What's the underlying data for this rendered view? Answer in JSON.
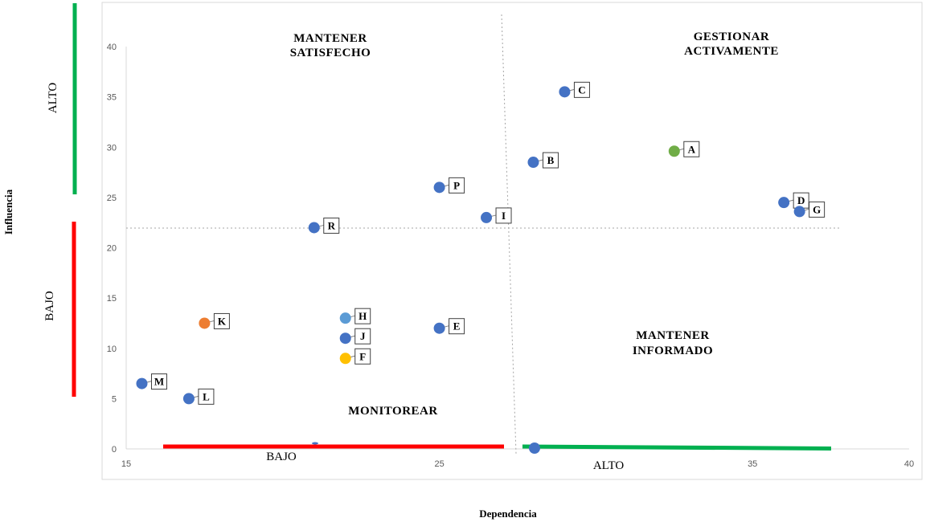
{
  "chart_data": {
    "type": "scatter",
    "xlabel": "Dependencia",
    "ylabel": "Influencia",
    "xlim": [
      15,
      40
    ],
    "ylim": [
      0,
      40
    ],
    "x_ticks": [
      15,
      25,
      35,
      40
    ],
    "y_ticks": [
      0,
      5,
      10,
      15,
      20,
      25,
      30,
      35,
      40
    ],
    "thresholds": {
      "x": 27,
      "y": 22
    },
    "quadrant_labels": {
      "top_left": [
        "MANTENER",
        "SATISFECHO"
      ],
      "top_right": [
        "GESTIONAR",
        "ACTIVAMENTE"
      ],
      "bottom_right": [
        "MANTENER",
        "INFORMADO"
      ],
      "bottom_left": [
        "MONITOREAR"
      ]
    },
    "side_labels": {
      "y_high": "ALTO",
      "y_low": "BAJO",
      "x_low": "BAJO",
      "x_high": "ALTO"
    },
    "points": [
      {
        "label": "A",
        "x": 32.5,
        "y": 29.6,
        "color": "#70ad47"
      },
      {
        "label": "B",
        "x": 28.0,
        "y": 28.5,
        "color": "#4472c4"
      },
      {
        "label": "C",
        "x": 29.0,
        "y": 35.5,
        "color": "#4472c4"
      },
      {
        "label": "D",
        "x": 36.0,
        "y": 24.5,
        "color": "#4472c4"
      },
      {
        "label": "E",
        "x": 25.0,
        "y": 12.0,
        "color": "#4472c4"
      },
      {
        "label": "F",
        "x": 22.0,
        "y": 9.0,
        "color": "#ffc000"
      },
      {
        "label": "G",
        "x": 36.5,
        "y": 23.6,
        "color": "#4472c4"
      },
      {
        "label": "H",
        "x": 22.0,
        "y": 13.0,
        "color": "#5b9bd5"
      },
      {
        "label": "I",
        "x": 26.5,
        "y": 23.0,
        "color": "#4472c4"
      },
      {
        "label": "J",
        "x": 22.0,
        "y": 11.0,
        "color": "#4472c4"
      },
      {
        "label": "K",
        "x": 17.5,
        "y": 12.5,
        "color": "#ed7d31"
      },
      {
        "label": "L",
        "x": 17.0,
        "y": 5.0,
        "color": "#4472c4"
      },
      {
        "label": "M",
        "x": 15.5,
        "y": 6.5,
        "color": "#4472c4"
      },
      {
        "label": "P",
        "x": 25.0,
        "y": 26.0,
        "color": "#4472c4"
      },
      {
        "label": "R",
        "x": 21.0,
        "y": 22.0,
        "color": "#4472c4"
      }
    ],
    "colors": {
      "high": "#00b050",
      "low": "#ff0000",
      "grid": "#d9d9d9",
      "guide": "#a6a6a6"
    }
  }
}
